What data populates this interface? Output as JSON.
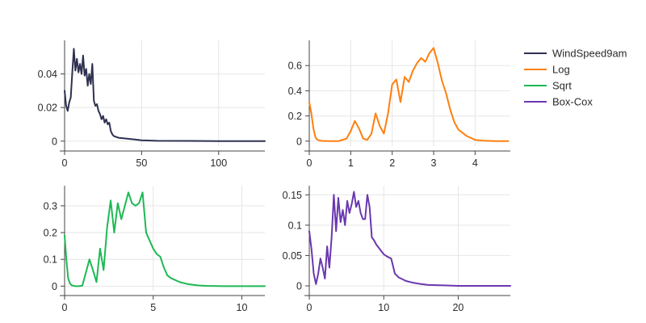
{
  "chart_data": [
    {
      "type": "line",
      "series": [
        {
          "name": "WindSpeed9am",
          "color": "#2e3150",
          "x": [
            0,
            1,
            2,
            3,
            4,
            5,
            6,
            7,
            8,
            9,
            10,
            11,
            12,
            13,
            14,
            15,
            16,
            17,
            18,
            19,
            20,
            21,
            22,
            23,
            24,
            25,
            26,
            27,
            28,
            29,
            30,
            31,
            32,
            35,
            40,
            45,
            50,
            60,
            80,
            100,
            130
          ],
          "y": [
            0.03,
            0.021,
            0.018,
            0.023,
            0.026,
            0.041,
            0.055,
            0.042,
            0.049,
            0.041,
            0.046,
            0.04,
            0.051,
            0.039,
            0.043,
            0.033,
            0.04,
            0.034,
            0.046,
            0.024,
            0.021,
            0.022,
            0.018,
            0.016,
            0.013,
            0.015,
            0.011,
            0.013,
            0.01,
            0.011,
            0.006,
            0.004,
            0.003,
            0.002,
            0.0015,
            0.001,
            0.0005,
            0.0002,
            0.0001,
            0.0,
            0.0
          ]
        }
      ],
      "xlim": [
        0,
        130
      ],
      "ylim": [
        -0.003,
        0.06
      ],
      "xticks": [
        0,
        50,
        100
      ],
      "xtick_labels": [
        "0",
        "50",
        "100"
      ],
      "yticks": [
        0,
        0.02,
        0.04
      ],
      "ytick_labels": [
        "0",
        "0.02",
        "0.04"
      ],
      "grid": true
    },
    {
      "type": "line",
      "series": [
        {
          "name": "Log",
          "color": "#ff7f0e",
          "x": [
            0,
            0.05,
            0.1,
            0.15,
            0.2,
            0.3,
            0.5,
            0.7,
            0.9,
            1.0,
            1.1,
            1.2,
            1.3,
            1.4,
            1.5,
            1.6,
            1.7,
            1.8,
            1.9,
            2.0,
            2.1,
            2.2,
            2.3,
            2.4,
            2.5,
            2.6,
            2.7,
            2.8,
            2.9,
            3.0,
            3.1,
            3.2,
            3.3,
            3.4,
            3.5,
            3.6,
            3.8,
            4.0,
            4.2,
            4.5,
            4.8
          ],
          "y": [
            0.31,
            0.22,
            0.1,
            0.03,
            0.01,
            0.002,
            0.0,
            0.0,
            0.02,
            0.08,
            0.16,
            0.1,
            0.02,
            0.01,
            0.06,
            0.22,
            0.12,
            0.06,
            0.22,
            0.45,
            0.49,
            0.31,
            0.51,
            0.47,
            0.56,
            0.62,
            0.66,
            0.63,
            0.7,
            0.74,
            0.62,
            0.48,
            0.38,
            0.25,
            0.15,
            0.09,
            0.04,
            0.01,
            0.003,
            0.0,
            0.0
          ]
        }
      ],
      "xlim": [
        0,
        4.85
      ],
      "ylim": [
        -0.04,
        0.8
      ],
      "xticks": [
        0,
        1,
        2,
        3,
        4
      ],
      "xtick_labels": [
        "0",
        "1",
        "2",
        "3",
        "4"
      ],
      "yticks": [
        0,
        0.2,
        0.4,
        0.6
      ],
      "ytick_labels": [
        "0",
        "0.2",
        "0.4",
        "0.6"
      ],
      "grid": true
    },
    {
      "type": "line",
      "series": [
        {
          "name": "Sqrt",
          "color": "#1db954",
          "x": [
            0,
            0.1,
            0.2,
            0.3,
            0.4,
            0.6,
            0.8,
            1.0,
            1.2,
            1.4,
            1.6,
            1.8,
            2.0,
            2.2,
            2.4,
            2.6,
            2.8,
            3.0,
            3.2,
            3.4,
            3.6,
            3.8,
            4.0,
            4.2,
            4.4,
            4.6,
            4.8,
            5.0,
            5.2,
            5.4,
            5.6,
            5.8,
            6.0,
            6.5,
            7.0,
            7.5,
            8.0,
            9.0,
            10.0,
            11.3
          ],
          "y": [
            0.19,
            0.1,
            0.03,
            0.01,
            0.003,
            0.0,
            0.0,
            0.002,
            0.05,
            0.1,
            0.06,
            0.015,
            0.14,
            0.06,
            0.22,
            0.32,
            0.2,
            0.31,
            0.25,
            0.3,
            0.35,
            0.31,
            0.3,
            0.31,
            0.35,
            0.2,
            0.17,
            0.14,
            0.12,
            0.11,
            0.07,
            0.04,
            0.03,
            0.015,
            0.007,
            0.003,
            0.001,
            0.0,
            0.0,
            0.0
          ]
        }
      ],
      "xlim": [
        0,
        11.3
      ],
      "ylim": [
        -0.017,
        0.375
      ],
      "xticks": [
        0,
        5,
        10
      ],
      "xtick_labels": [
        "0",
        "5",
        "10"
      ],
      "yticks": [
        0,
        0.1,
        0.2,
        0.3
      ],
      "ytick_labels": [
        "0",
        "0.1",
        "0.2",
        "0.3"
      ],
      "grid": true
    },
    {
      "type": "line",
      "series": [
        {
          "name": "Box-Cox",
          "color": "#6a38b0",
          "x": [
            0,
            0.3,
            0.6,
            0.9,
            1.2,
            1.5,
            1.8,
            2.1,
            2.4,
            2.7,
            3.0,
            3.3,
            3.6,
            3.9,
            4.2,
            4.5,
            4.8,
            5.1,
            5.4,
            5.7,
            6.0,
            6.3,
            6.6,
            6.9,
            7.2,
            7.5,
            7.8,
            8.1,
            8.4,
            8.7,
            9.0,
            9.5,
            10.0,
            10.5,
            11.0,
            11.5,
            12.0,
            13.0,
            14.0,
            15.0,
            16.0,
            18.0,
            20.0,
            24.0,
            27.0
          ],
          "y": [
            0.09,
            0.06,
            0.02,
            0.003,
            0.02,
            0.045,
            0.03,
            0.012,
            0.065,
            0.03,
            0.08,
            0.15,
            0.09,
            0.145,
            0.105,
            0.125,
            0.1,
            0.14,
            0.12,
            0.135,
            0.155,
            0.13,
            0.14,
            0.12,
            0.11,
            0.11,
            0.15,
            0.13,
            0.08,
            0.075,
            0.068,
            0.06,
            0.052,
            0.048,
            0.045,
            0.02,
            0.014,
            0.008,
            0.005,
            0.003,
            0.0015,
            0.0008,
            0.0,
            0.0,
            0.0
          ]
        }
      ],
      "xlim": [
        0,
        27
      ],
      "ylim": [
        -0.008,
        0.165
      ],
      "xticks": [
        0,
        10,
        20
      ],
      "xtick_labels": [
        "0",
        "10",
        "20"
      ],
      "yticks": [
        0,
        0.05,
        0.1,
        0.15
      ],
      "ytick_labels": [
        "0",
        "0.05",
        "0.1",
        "0.15"
      ],
      "grid": true
    }
  ],
  "legend": {
    "placement": "top-right",
    "items": [
      {
        "label": "WindSpeed9am",
        "color": "#2e3150"
      },
      {
        "label": "Log",
        "color": "#ff7f0e"
      },
      {
        "label": "Sqrt",
        "color": "#1db954"
      },
      {
        "label": "Box-Cox",
        "color": "#6a38b0"
      }
    ]
  }
}
